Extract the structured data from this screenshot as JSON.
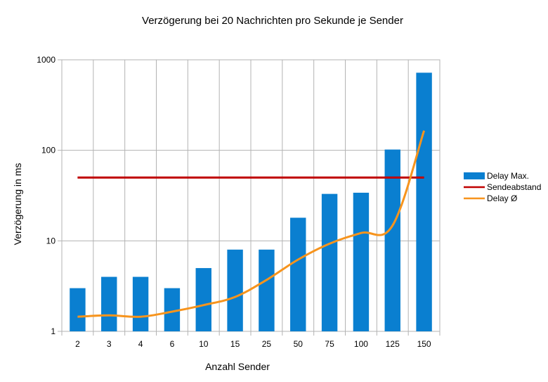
{
  "chart_data": {
    "type": "bar",
    "title": "Verzögerung bei 20 Nachrichten pro Sekunde je Sender",
    "xlabel": "Anzahl Sender",
    "ylabel": "Verzögerung in ms",
    "yscale": "log",
    "ylim": [
      1,
      1000
    ],
    "yticks": [
      "1",
      "10",
      "100",
      "1000"
    ],
    "grid": true,
    "legend_position": "right",
    "categories": [
      "2",
      "3",
      "4",
      "6",
      "10",
      "15",
      "25",
      "50",
      "75",
      "100",
      "125",
      "150"
    ],
    "series": [
      {
        "name": "Delay Max.",
        "type": "bar",
        "color": "#0a7fd0",
        "values": [
          3,
          4,
          4,
          3,
          5,
          8,
          8,
          18,
          33,
          34,
          102,
          720
        ]
      },
      {
        "name": "Sendeabstand",
        "type": "line",
        "color": "#c00000",
        "values": [
          50,
          50,
          50,
          50,
          50,
          50,
          50,
          50,
          50,
          50,
          50,
          50
        ]
      },
      {
        "name": "Delay Ø",
        "type": "line",
        "color": "#f7941d",
        "values": [
          1.45,
          1.5,
          1.45,
          1.65,
          1.95,
          2.4,
          3.7,
          6.2,
          9.3,
          12.2,
          14.8,
          165
        ]
      }
    ]
  }
}
